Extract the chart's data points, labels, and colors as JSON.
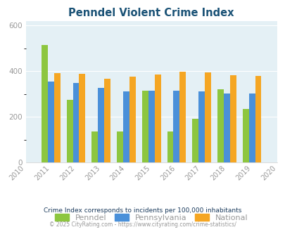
{
  "title": "Penndel Violent Crime Index",
  "years": [
    2011,
    2012,
    2013,
    2014,
    2015,
    2016,
    2017,
    2018,
    2019
  ],
  "penndel": [
    515,
    275,
    135,
    135,
    315,
    135,
    190,
    320,
    235
  ],
  "pennsylvania": [
    355,
    348,
    328,
    310,
    313,
    315,
    310,
    303,
    302
  ],
  "national": [
    390,
    387,
    368,
    376,
    384,
    398,
    395,
    383,
    379
  ],
  "color_penndel": "#8dc63f",
  "color_pennsylvania": "#4a90d9",
  "color_national": "#f5a623",
  "bg_color": "#e4f0f5",
  "title_color": "#1a5276",
  "ylim": [
    0,
    620
  ],
  "yticks": [
    0,
    200,
    400,
    600
  ],
  "tick_color": "#aaaaaa",
  "footnote1": "Crime Index corresponds to incidents per 100,000 inhabitants",
  "footnote2": "© 2025 CityRating.com - https://www.cityrating.com/crime-statistics/",
  "legend_labels": [
    "Penndel",
    "Pennsylvania",
    "National"
  ],
  "footnote1_color": "#1a3a5c",
  "footnote2_color": "#999999",
  "label_color": "#999999"
}
